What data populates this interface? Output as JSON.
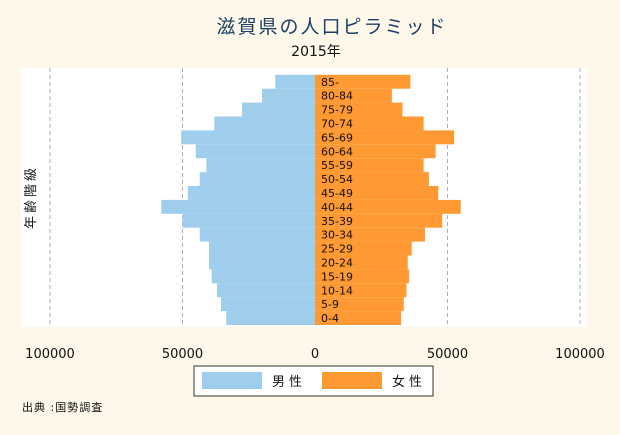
{
  "chart_data": {
    "type": "bar",
    "orientation": "horizontal-population-pyramid",
    "title": "滋賀県の人口ピラミッド",
    "subtitle": "2015年",
    "ylabel": "年齢階級",
    "categories": [
      "0-4",
      "5-9",
      "10-14",
      "15-19",
      "20-24",
      "25-29",
      "30-34",
      "35-39",
      "40-44",
      "45-49",
      "50-54",
      "55-59",
      "60-64",
      "65-69",
      "70-74",
      "75-79",
      "80-84",
      "85-"
    ],
    "series": [
      {
        "name": "男性",
        "color": "#9fcdec",
        "values": [
          33500,
          35500,
          37000,
          39000,
          40000,
          40000,
          43500,
          50000,
          58000,
          48000,
          43500,
          41000,
          45000,
          50500,
          38000,
          27500,
          20000,
          15000
        ]
      },
      {
        "name": "女性",
        "color": "#ff9933",
        "values": [
          32500,
          33500,
          34500,
          35500,
          35000,
          36500,
          41500,
          48000,
          55000,
          46500,
          43000,
          41000,
          45500,
          52500,
          41000,
          33000,
          29000,
          36000
        ]
      }
    ],
    "xticks": [
      "100000",
      "50000",
      "0",
      "50000",
      "100000"
    ],
    "xlim": [
      -100000,
      100000
    ],
    "grid": true,
    "legend_position": "bottom"
  },
  "source": "出典 :国勢調査"
}
